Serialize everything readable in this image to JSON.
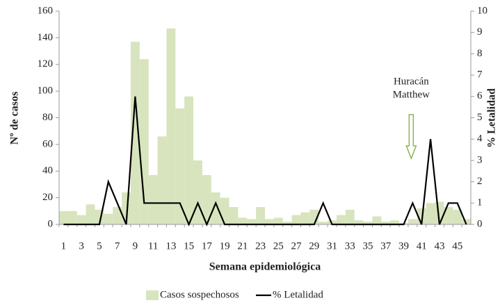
{
  "chart_data": {
    "type": "bar",
    "x_label": "Semana epidemiológica",
    "y_label": "Nº de casos",
    "y2_label": "% Letalidad",
    "categories": [
      "1",
      null,
      "3",
      null,
      "5",
      null,
      "7",
      null,
      "9",
      null,
      "11",
      null,
      "13",
      null,
      "15",
      null,
      "17",
      null,
      "19",
      null,
      "21",
      null,
      "23",
      null,
      "25",
      null,
      "27",
      null,
      "29",
      null,
      "31",
      null,
      "33",
      null,
      "35",
      null,
      "37",
      null,
      "39",
      null,
      "41",
      null,
      "43",
      null,
      "45",
      null
    ],
    "series": [
      {
        "name": "Casos sospechosos",
        "type": "bar",
        "color": "#d7e4bd",
        "values": [
          10,
          10,
          7,
          15,
          11,
          8,
          13,
          24,
          137,
          124,
          37,
          66,
          147,
          87,
          96,
          48,
          37,
          24,
          20,
          13,
          5,
          4,
          13,
          4,
          5,
          2,
          7,
          9,
          11,
          2,
          3,
          7,
          11,
          3,
          2,
          6,
          2,
          3,
          1,
          4,
          12,
          16,
          17,
          13,
          11,
          4
        ]
      },
      {
        "name": "% Letalidad",
        "type": "line",
        "axis": "y2",
        "color": "#000000",
        "values": [
          0,
          0,
          0,
          0,
          0,
          2,
          1,
          0,
          6,
          1,
          1,
          1,
          1,
          1,
          0,
          1,
          0,
          1,
          0,
          0,
          0,
          0,
          0,
          0,
          0,
          0,
          0,
          0,
          0,
          1,
          0,
          0,
          0,
          0,
          0,
          0,
          0,
          0,
          0,
          1,
          0,
          4,
          0,
          1,
          1,
          0
        ]
      }
    ],
    "ylim": [
      0,
      160
    ],
    "yticks": [
      0,
      20,
      40,
      60,
      80,
      100,
      120,
      140,
      160
    ],
    "y2lim": [
      0,
      10
    ],
    "y2ticks": [
      0,
      1,
      2,
      3,
      4,
      5,
      6,
      7,
      8,
      9,
      10
    ],
    "grid": false,
    "legend": "bottom",
    "annotation": {
      "lines": [
        "Huracán",
        "Matthew"
      ],
      "color": "#8db356"
    }
  }
}
